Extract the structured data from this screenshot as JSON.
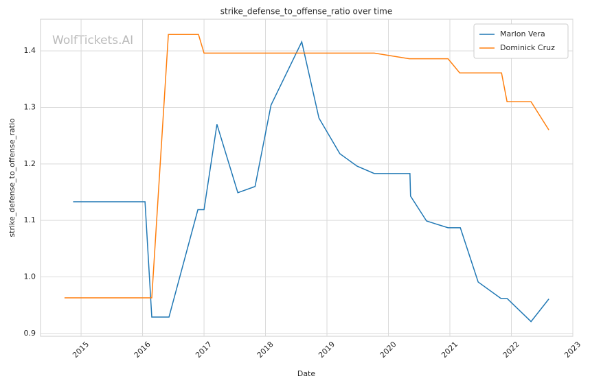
{
  "chart_data": {
    "type": "line",
    "title": "strike_defense_to_offense_ratio over time",
    "x_label": "Date",
    "y_label": "strike_defense_to_offense_ratio",
    "watermark": "WolfTickets.AI",
    "xlim": [
      2014.34,
      2023.0
    ],
    "xticks": [
      2015,
      2016,
      2017,
      2018,
      2019,
      2020,
      2021,
      2022,
      2023
    ],
    "ylim": [
      0.895,
      1.456
    ],
    "yticks": [
      0.9,
      {
        "value": 1,
        "label": "1.0"
      },
      1.1,
      1.2,
      1.3,
      1.4
    ],
    "grid": true,
    "legend": "upper right",
    "series": [
      {
        "name": "Marlon Vera",
        "color": "#1f77b4",
        "x": [
          2014.87,
          2016.04,
          2016.15,
          2016.43,
          2016.9,
          2017.0,
          2017.21,
          2017.55,
          2017.83,
          2018.09,
          2018.59,
          2018.87,
          2019.21,
          2019.49,
          2019.77,
          2020.35,
          2020.36,
          2020.62,
          2020.97,
          2021.17,
          2021.46,
          2021.83,
          2021.93,
          2022.32,
          2022.61
        ],
        "values": [
          1.133,
          1.133,
          0.929,
          0.929,
          1.119,
          1.119,
          1.27,
          1.149,
          1.16,
          1.304,
          1.416,
          1.281,
          1.218,
          1.196,
          1.183,
          1.183,
          1.143,
          1.099,
          1.087,
          1.087,
          0.991,
          0.962,
          0.962,
          0.921,
          0.961
        ]
      },
      {
        "name": "Dominick Cruz",
        "color": "#ff7f0e",
        "x": [
          2014.73,
          2016.15,
          2016.42,
          2016.91,
          2017.0,
          2019.77,
          2020.34,
          2020.97,
          2021.16,
          2021.84,
          2021.93,
          2022.32,
          2022.61
        ],
        "values": [
          0.963,
          0.963,
          1.429,
          1.429,
          1.396,
          1.396,
          1.386,
          1.386,
          1.361,
          1.361,
          1.31,
          1.31,
          1.26
        ]
      }
    ]
  }
}
